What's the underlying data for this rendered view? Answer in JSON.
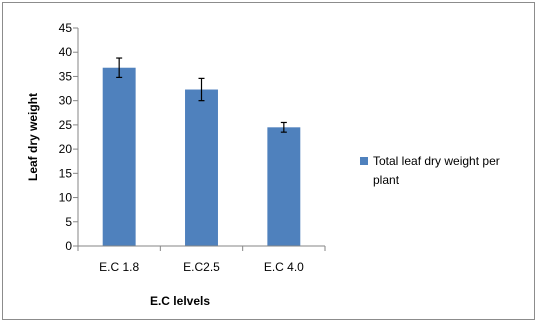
{
  "chart_data": {
    "type": "bar",
    "categories": [
      "E.C 1.8",
      "E.C2.5",
      "E.C 4.0"
    ],
    "series": [
      {
        "name": "Total leaf dry weight per plant",
        "values": [
          36.8,
          32.3,
          24.5
        ],
        "error": [
          2.0,
          2.3,
          1.0
        ],
        "color": "#4f81bd"
      }
    ],
    "xlabel": "E.C lelvels",
    "ylabel": "Leaf dry weight",
    "ylim": [
      0,
      45
    ],
    "yticks": [
      "0",
      "5",
      "10",
      "15",
      "20",
      "25",
      "30",
      "35",
      "40",
      "45"
    ],
    "grid": false,
    "legend_position": "right"
  },
  "legend": {
    "line1": "Total leaf dry weight per",
    "line2": "plant"
  }
}
